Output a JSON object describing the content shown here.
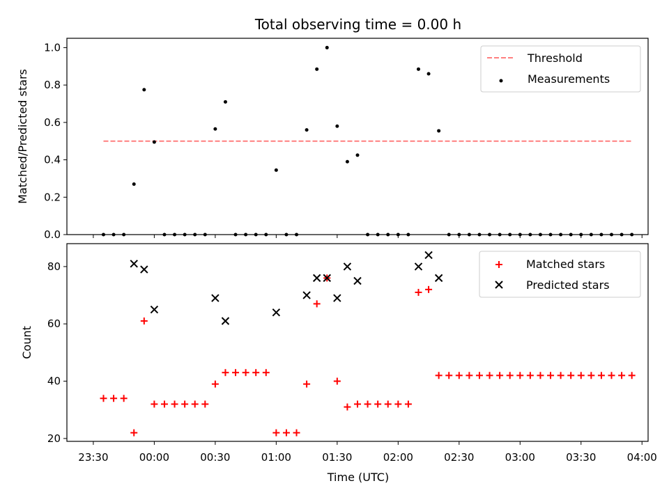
{
  "chart_data": {
    "title": "Total observing time = 0.00 h",
    "xlabel": "Time (UTC)",
    "x_ticks": [
      {
        "t": -30,
        "label": "23:30"
      },
      {
        "t": 0,
        "label": "00:00"
      },
      {
        "t": 30,
        "label": "00:30"
      },
      {
        "t": 60,
        "label": "01:00"
      },
      {
        "t": 90,
        "label": "01:30"
      },
      {
        "t": 120,
        "label": "02:00"
      },
      {
        "t": 150,
        "label": "02:30"
      },
      {
        "t": 180,
        "label": "03:00"
      },
      {
        "t": 210,
        "label": "03:30"
      },
      {
        "t": 240,
        "label": "04:00"
      }
    ],
    "xlim": [
      -43,
      243
    ],
    "top": {
      "ylabel": "Matched/Predicted stars",
      "ylim": [
        0,
        1.05
      ],
      "y_ticks": [
        {
          "v": 0,
          "label": "0.0"
        },
        {
          "v": 0.2,
          "label": "0.2"
        },
        {
          "v": 0.4,
          "label": "0.4"
        },
        {
          "v": 0.6,
          "label": "0.6"
        },
        {
          "v": 0.8,
          "label": "0.8"
        },
        {
          "v": 1.0,
          "label": "1.0"
        }
      ],
      "threshold": {
        "name": "Threshold",
        "value": 0.5,
        "x_range": [
          -25,
          235
        ],
        "color": "#ff7f7f"
      },
      "measurements": {
        "name": "Measurements",
        "color": "#000000",
        "points": [
          [
            -25,
            0
          ],
          [
            -20,
            0
          ],
          [
            -15,
            0
          ],
          [
            -10,
            0.27
          ],
          [
            -5,
            0.775
          ],
          [
            0,
            0.495
          ],
          [
            5,
            0
          ],
          [
            10,
            0
          ],
          [
            15,
            0
          ],
          [
            20,
            0
          ],
          [
            25,
            0
          ],
          [
            30,
            0.565
          ],
          [
            35,
            0.71
          ],
          [
            40,
            0
          ],
          [
            45,
            0
          ],
          [
            50,
            0
          ],
          [
            55,
            0
          ],
          [
            60,
            0.345
          ],
          [
            65,
            0
          ],
          [
            70,
            0
          ],
          [
            75,
            0.56
          ],
          [
            80,
            0.885
          ],
          [
            85,
            1.0
          ],
          [
            90,
            0.58
          ],
          [
            95,
            0.39
          ],
          [
            100,
            0.425
          ],
          [
            105,
            0
          ],
          [
            110,
            0
          ],
          [
            115,
            0
          ],
          [
            120,
            0
          ],
          [
            125,
            0
          ],
          [
            130,
            0.885
          ],
          [
            135,
            0.86
          ],
          [
            140,
            0.555
          ],
          [
            145,
            0
          ],
          [
            150,
            0
          ],
          [
            155,
            0
          ],
          [
            160,
            0
          ],
          [
            165,
            0
          ],
          [
            170,
            0
          ],
          [
            175,
            0
          ],
          [
            180,
            0
          ],
          [
            185,
            0
          ],
          [
            190,
            0
          ],
          [
            195,
            0
          ],
          [
            200,
            0
          ],
          [
            205,
            0
          ],
          [
            210,
            0
          ],
          [
            215,
            0
          ],
          [
            220,
            0
          ],
          [
            225,
            0
          ],
          [
            230,
            0
          ],
          [
            235,
            0
          ]
        ]
      },
      "legend": {
        "position": "top-right"
      }
    },
    "bottom": {
      "ylabel": "Count",
      "ylim": [
        19,
        88
      ],
      "y_ticks": [
        {
          "v": 20,
          "label": "20"
        },
        {
          "v": 40,
          "label": "40"
        },
        {
          "v": 60,
          "label": "60"
        },
        {
          "v": 80,
          "label": "80"
        }
      ],
      "matched": {
        "name": "Matched stars",
        "color": "#ff0000",
        "points": [
          [
            -25,
            34
          ],
          [
            -20,
            34
          ],
          [
            -15,
            34
          ],
          [
            -10,
            22
          ],
          [
            -5,
            61
          ],
          [
            0,
            32
          ],
          [
            5,
            32
          ],
          [
            10,
            32
          ],
          [
            15,
            32
          ],
          [
            20,
            32
          ],
          [
            25,
            32
          ],
          [
            30,
            39
          ],
          [
            35,
            43
          ],
          [
            40,
            43
          ],
          [
            45,
            43
          ],
          [
            50,
            43
          ],
          [
            55,
            43
          ],
          [
            60,
            22
          ],
          [
            65,
            22
          ],
          [
            70,
            22
          ],
          [
            75,
            39
          ],
          [
            80,
            67
          ],
          [
            85,
            76
          ],
          [
            90,
            40
          ],
          [
            95,
            31
          ],
          [
            100,
            32
          ],
          [
            105,
            32
          ],
          [
            110,
            32
          ],
          [
            115,
            32
          ],
          [
            120,
            32
          ],
          [
            125,
            32
          ],
          [
            130,
            71
          ],
          [
            135,
            72
          ],
          [
            140,
            42
          ],
          [
            145,
            42
          ],
          [
            150,
            42
          ],
          [
            155,
            42
          ],
          [
            160,
            42
          ],
          [
            165,
            42
          ],
          [
            170,
            42
          ],
          [
            175,
            42
          ],
          [
            180,
            42
          ],
          [
            185,
            42
          ],
          [
            190,
            42
          ],
          [
            195,
            42
          ],
          [
            200,
            42
          ],
          [
            205,
            42
          ],
          [
            210,
            42
          ],
          [
            215,
            42
          ],
          [
            220,
            42
          ],
          [
            225,
            42
          ],
          [
            230,
            42
          ],
          [
            235,
            42
          ]
        ]
      },
      "predicted": {
        "name": "Predicted stars",
        "color": "#000000",
        "points": [
          [
            -10,
            81
          ],
          [
            -5,
            79
          ],
          [
            0,
            65
          ],
          [
            30,
            69
          ],
          [
            35,
            61
          ],
          [
            60,
            64
          ],
          [
            75,
            70
          ],
          [
            80,
            76
          ],
          [
            85,
            76
          ],
          [
            90,
            69
          ],
          [
            95,
            80
          ],
          [
            100,
            75
          ],
          [
            130,
            80
          ],
          [
            135,
            84
          ],
          [
            140,
            76
          ]
        ]
      },
      "legend": {
        "position": "top-right"
      }
    }
  }
}
